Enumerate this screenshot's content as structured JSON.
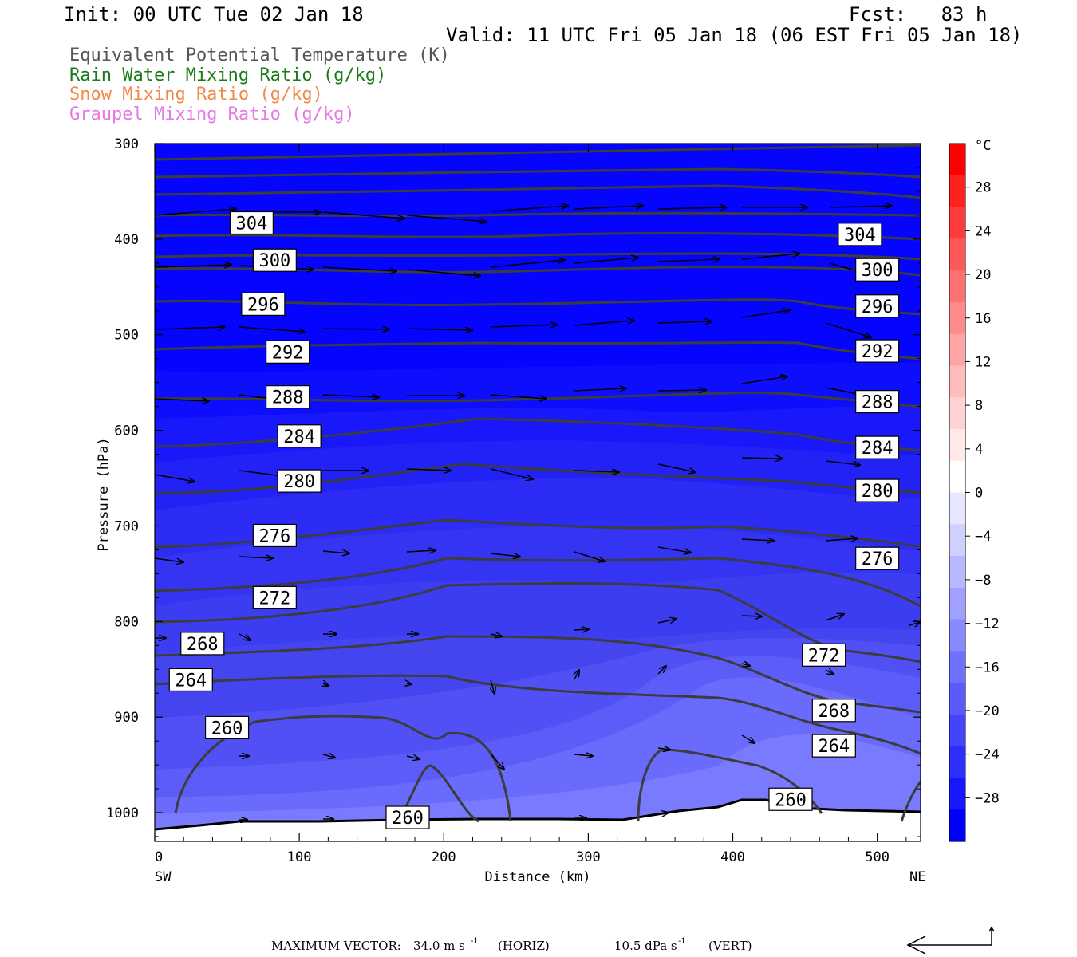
{
  "header": {
    "init": "Init: 00 UTC Tue 02 Jan 18",
    "fcst": "Fcst:   83 h",
    "valid": "Valid: 11 UTC Fri 05 Jan 18 (06 EST Fri 05 Jan 18)"
  },
  "legend": [
    {
      "text": "Equivalent Potential Temperature (K)",
      "color": "#555555"
    },
    {
      "text": "Rain Water Mixing Ratio (g/kg)",
      "color": "#1a7a1a"
    },
    {
      "text": "Snow Mixing Ratio (g/kg)",
      "color": "#f08a4b"
    },
    {
      "text": "Graupel Mixing Ratio (g/kg)",
      "color": "#e678e6"
    }
  ],
  "chart_data": {
    "type": "contour cross-section",
    "xlabel": "Distance (km)",
    "ylabel": "Pressure (hPa)",
    "xlim": [
      0,
      530
    ],
    "ylim": [
      1030,
      300
    ],
    "x_ticks": [
      0,
      100,
      200,
      300,
      400,
      500
    ],
    "y_ticks": [
      300,
      400,
      500,
      600,
      700,
      800,
      900,
      1000
    ],
    "x_endpoints": {
      "left": "SW",
      "right": "NE"
    },
    "colorbar": {
      "unit": "°C",
      "labels": [
        28,
        24,
        20,
        16,
        12,
        8,
        4,
        0,
        -4,
        -8,
        -12,
        -16,
        -20,
        -24,
        -28
      ],
      "range": [
        -32,
        32
      ],
      "colors": [
        "#ff0000",
        "#ff2020",
        "#ff3c3c",
        "#ff5858",
        "#ff7070",
        "#ff8a8a",
        "#ffa4a4",
        "#ffbcbc",
        "#ffd2d2",
        "#ffe8e8",
        "#ffffff",
        "#e6e6ff",
        "#d0d0ff",
        "#b8b8ff",
        "#a0a0ff",
        "#8888ff",
        "#7070ff",
        "#5a5aff",
        "#4444ff",
        "#2e2eff",
        "#1818ff",
        "#0000ff"
      ]
    },
    "theta_e_labels": [
      {
        "value": "304",
        "x": 67,
        "p": 383
      },
      {
        "value": "304",
        "x": 488,
        "p": 395
      },
      {
        "value": "300",
        "x": 83,
        "p": 422
      },
      {
        "value": "300",
        "x": 500,
        "p": 432
      },
      {
        "value": "296",
        "x": 75,
        "p": 468
      },
      {
        "value": "296",
        "x": 500,
        "p": 470
      },
      {
        "value": "292",
        "x": 92,
        "p": 518
      },
      {
        "value": "292",
        "x": 500,
        "p": 517
      },
      {
        "value": "288",
        "x": 92,
        "p": 565
      },
      {
        "value": "288",
        "x": 500,
        "p": 570
      },
      {
        "value": "284",
        "x": 100,
        "p": 606
      },
      {
        "value": "284",
        "x": 500,
        "p": 618
      },
      {
        "value": "280",
        "x": 100,
        "p": 653
      },
      {
        "value": "280",
        "x": 500,
        "p": 663
      },
      {
        "value": "276",
        "x": 83,
        "p": 710
      },
      {
        "value": "276",
        "x": 500,
        "p": 734
      },
      {
        "value": "272",
        "x": 83,
        "p": 775
      },
      {
        "value": "272",
        "x": 463,
        "p": 835
      },
      {
        "value": "268",
        "x": 33,
        "p": 823
      },
      {
        "value": "268",
        "x": 470,
        "p": 893
      },
      {
        "value": "264",
        "x": 25,
        "p": 861
      },
      {
        "value": "264",
        "x": 470,
        "p": 930
      },
      {
        "value": "260",
        "x": 50,
        "p": 911
      },
      {
        "value": "260",
        "x": 440,
        "p": 986
      },
      {
        "value": "260",
        "x": 175,
        "p": 1005
      }
    ],
    "max_vector": {
      "label": "MAXIMUM VECTOR:",
      "horiz": "34.0 m s",
      "horiz_exp": "-1",
      "horiz_tag": "(HORIZ)",
      "vert": "10.5 dPa s",
      "vert_exp": "-1",
      "vert_tag": "(VERT)"
    }
  }
}
